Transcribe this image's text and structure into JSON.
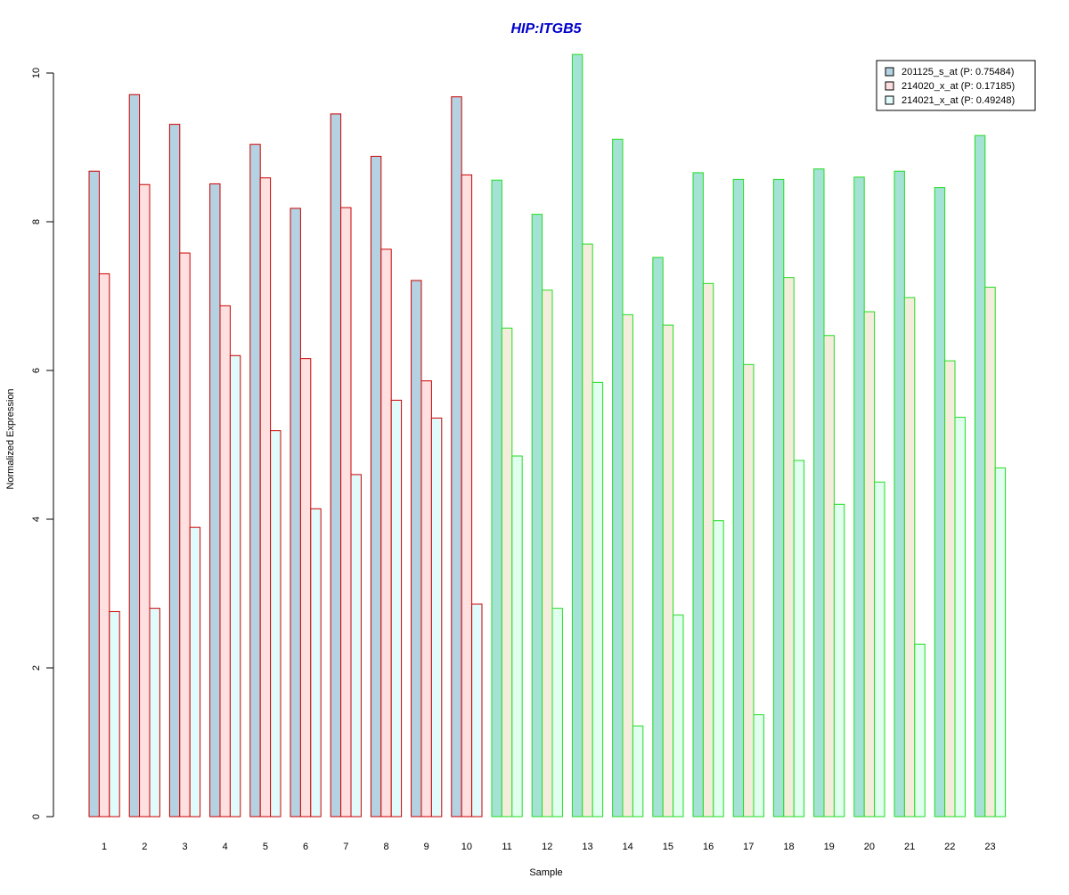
{
  "chart_data": {
    "type": "bar",
    "title": "HIP:ITGB5",
    "xlabel": "Sample",
    "ylabel": "Normalized Expression",
    "ylim": [
      0,
      10.3
    ],
    "yticks": [
      "0",
      "2",
      "4",
      "6",
      "8",
      "10"
    ],
    "grid": false,
    "legend_position": "top-right",
    "categories": [
      "1",
      "2",
      "3",
      "4",
      "5",
      "6",
      "7",
      "8",
      "9",
      "10",
      "11",
      "12",
      "13",
      "14",
      "15",
      "16",
      "17",
      "18",
      "19",
      "20",
      "21",
      "22",
      "23"
    ],
    "groups": [
      {
        "name": "red",
        "outline": "#cc0000",
        "samples": [
          "1",
          "2",
          "3",
          "4",
          "5",
          "6",
          "7",
          "8",
          "9",
          "10"
        ]
      },
      {
        "name": "green",
        "outline": "#22dd22",
        "samples": [
          "11",
          "12",
          "13",
          "14",
          "15",
          "16",
          "17",
          "18",
          "19",
          "20",
          "21",
          "22",
          "23"
        ]
      }
    ],
    "series": [
      {
        "name": "201125_s_at (P: 0.75484)",
        "fill_by_group": {
          "red": "#b4d2e2",
          "green": "#a3e2d4"
        },
        "legend_fill": "#b4d2e2",
        "values": [
          8.68,
          9.71,
          9.31,
          8.51,
          9.04,
          8.18,
          9.45,
          8.88,
          7.21,
          9.68,
          8.56,
          8.1,
          10.25,
          9.11,
          7.52,
          8.66,
          8.57,
          8.57,
          8.71,
          8.6,
          8.68,
          8.46,
          9.16
        ]
      },
      {
        "name": "214020_x_at (P: 0.17185)",
        "fill_by_group": {
          "red": "#ffe0e0",
          "green": "#f5eddc"
        },
        "legend_fill": "#ffe0e0",
        "values": [
          7.3,
          8.5,
          7.58,
          6.87,
          8.59,
          6.16,
          8.19,
          7.63,
          5.86,
          8.63,
          6.57,
          7.08,
          7.7,
          6.75,
          6.61,
          7.17,
          6.08,
          7.25,
          6.47,
          6.79,
          6.98,
          6.13,
          7.12
        ]
      },
      {
        "name": "214021_x_at (P: 0.49248)",
        "fill_by_group": {
          "red": "#e0fbfb",
          "green": "#e0ffef"
        },
        "legend_fill": "#e0fbfb",
        "values": [
          2.76,
          2.8,
          3.89,
          6.2,
          5.19,
          4.14,
          4.6,
          5.6,
          5.36,
          2.86,
          4.85,
          2.8,
          5.84,
          1.22,
          2.71,
          3.98,
          1.37,
          4.79,
          4.2,
          4.5,
          2.32,
          5.37,
          4.69
        ]
      }
    ]
  }
}
